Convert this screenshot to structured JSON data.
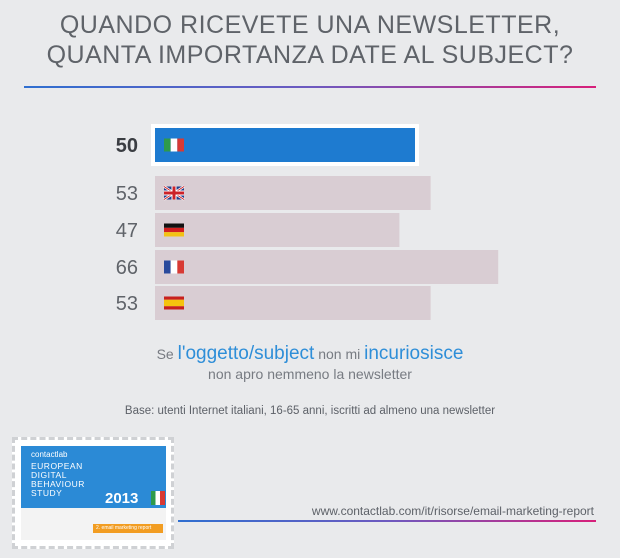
{
  "title_lines": [
    "QUANDO RICEVETE UNA NEWSLETTER,",
    "QUANTA IMPORTANZA DATE AL SUBJECT?"
  ],
  "colors": {
    "highlight_bar": "#1e7bd0",
    "other_bar": "#d9cdd3",
    "caption_accent": "#2e8ed8",
    "rule_gradient": [
      "#2f6fd0",
      "#d7207a"
    ]
  },
  "chart_data": {
    "type": "bar",
    "orientation": "horizontal",
    "categories": [
      "italy-flag",
      "uk-flag",
      "germany-flag",
      "france-flag",
      "spain-flag"
    ],
    "values": [
      50,
      53,
      47,
      66,
      53
    ],
    "highlight_index": 0,
    "xlim": [
      0,
      100
    ],
    "grid": false,
    "title": "",
    "xlabel": "",
    "ylabel": ""
  },
  "caption": {
    "pre": "Se ",
    "accent1": "l'oggetto/subject",
    "mid": " non mi ",
    "accent2": "incuriosisce",
    "line2": "non apro nemmeno la newsletter"
  },
  "base_note": "Base: utenti Internet italiani, 16-65 anni, iscritti ad almeno una newsletter",
  "cover": {
    "logo": "contactlab",
    "study_lines": [
      "EUROPEAN",
      "DIGITAL",
      "BEHAVIOUR",
      "STUDY"
    ],
    "year": "2013",
    "footer": "2. email marketing report"
  },
  "url": "www.contactlab.com/it/risorse/email-marketing-report"
}
